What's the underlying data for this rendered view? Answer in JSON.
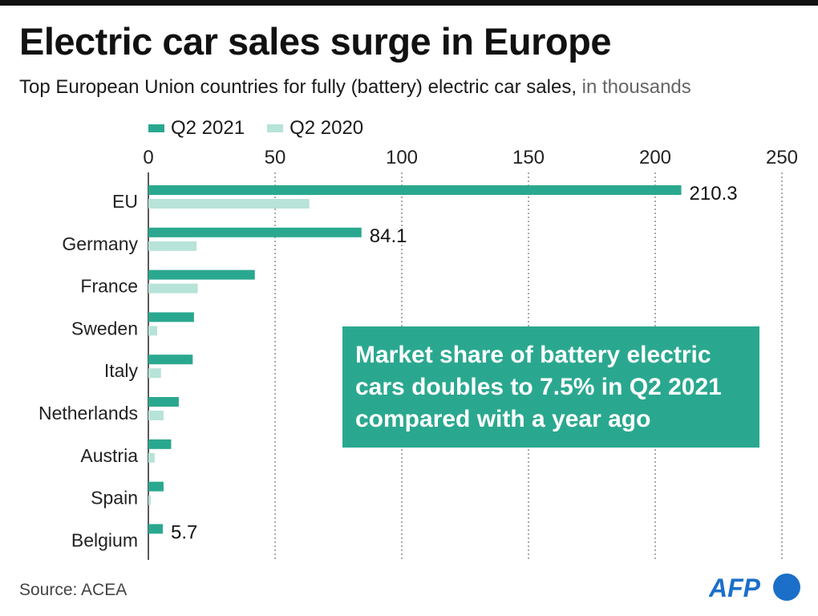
{
  "title": "Electric car sales surge in Europe",
  "subtitle": {
    "main": "Top European Union countries for fully (battery) electric car sales,",
    "unit": "in thousands"
  },
  "legend": [
    {
      "label": "Q2 2021",
      "color": "#2aa88f"
    },
    {
      "label": "Q2 2020",
      "color": "#b7e3d8"
    }
  ],
  "callout": "Market share of battery electric cars doubles to 7.5% in Q2 2021 compared with a year ago",
  "source": "Source: ACEA",
  "logo": {
    "text": "AFP",
    "color": "#1b6fc9"
  },
  "chart_data": {
    "type": "bar",
    "orientation": "horizontal",
    "categories": [
      "EU",
      "Germany",
      "France",
      "Sweden",
      "Italy",
      "Netherlands",
      "Austria",
      "Spain",
      "Belgium"
    ],
    "series": [
      {
        "name": "Q2 2021",
        "color": "#2aa88f",
        "values": [
          210.3,
          84.1,
          42,
          18,
          17.5,
          12,
          9,
          6,
          5.7
        ]
      },
      {
        "name": "Q2 2020",
        "color": "#b7e3d8",
        "values": [
          63.5,
          19,
          19.5,
          3.5,
          5,
          6,
          2.5,
          1,
          null
        ]
      }
    ],
    "data_labels": [
      {
        "category": "EU",
        "series": "Q2 2021",
        "text": "210.3"
      },
      {
        "category": "Germany",
        "series": "Q2 2021",
        "text": "84.1"
      },
      {
        "category": "Belgium",
        "series": "Q2 2021",
        "text": "5.7"
      }
    ],
    "xlim": [
      0,
      250
    ],
    "xticks": [
      0,
      50,
      100,
      150,
      200,
      250
    ],
    "x_axis_position": "top",
    "grid": "vertical dotted",
    "legend_position": "top-left"
  }
}
